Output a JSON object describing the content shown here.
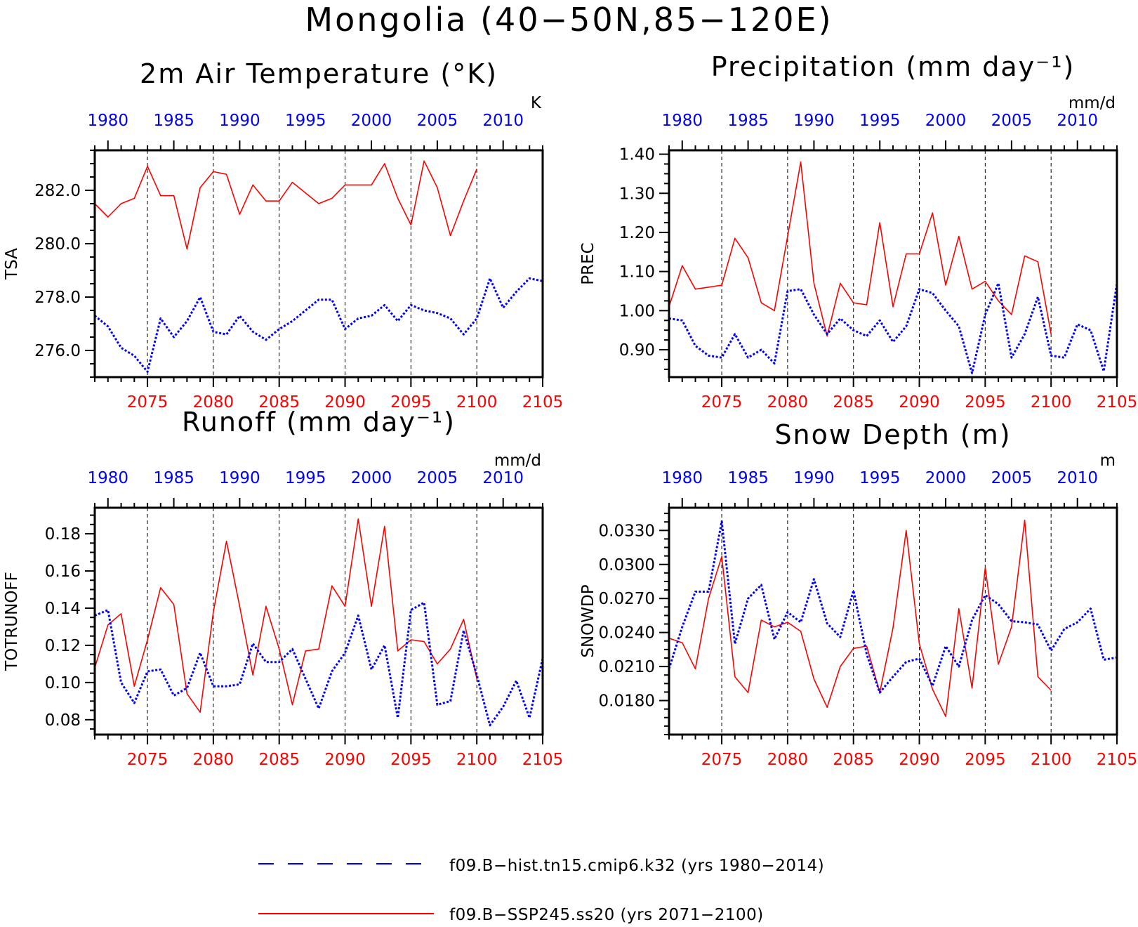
{
  "figure_title": "Mongolia (40−50N,85−120E)",
  "colors": {
    "hist": "#0000ff",
    "ssp": "#ff0000",
    "axis": "#000000",
    "grid": "#000000"
  },
  "legend": {
    "hist_label": "f09.B−hist.tn15.cmip6.k32 (yrs 1980−2014)",
    "ssp_label": "f09.B−SSP245.ss20 (yrs 2071−2100)"
  },
  "chart_data": [
    {
      "type": "line",
      "title": "2m Air Temperature (°K)",
      "ylabel": "TSA",
      "unit": "K",
      "ylim": [
        275.0,
        283.5
      ],
      "yticks": [
        276.0,
        278.0,
        280.0,
        282.0
      ],
      "ytick_labels": [
        "276.0",
        "278.0",
        "280.0",
        "282.0"
      ],
      "top_axis": {
        "range": [
          1979,
          2013
        ],
        "tick_labels": [
          "1980",
          "1985",
          "1990",
          "1995",
          "2000",
          "2005",
          "2010"
        ]
      },
      "bottom_axis": {
        "range": [
          2071,
          2105
        ],
        "tick_labels": [
          "2075",
          "2080",
          "2085",
          "2090",
          "2095",
          "2100",
          "2105"
        ]
      },
      "grid_x": [
        2075,
        2080,
        2085,
        2090,
        2095,
        2100
      ],
      "series": [
        {
          "name": "f09.B−hist.tn15.cmip6.k32",
          "style": "dotted",
          "x": [
            1979,
            1980,
            1981,
            1982,
            1983,
            1984,
            1985,
            1986,
            1987,
            1988,
            1989,
            1990,
            1991,
            1992,
            1993,
            1994,
            1995,
            1996,
            1997,
            1998,
            1999,
            2000,
            2001,
            2002,
            2003,
            2004,
            2005,
            2006,
            2007,
            2008,
            2009,
            2010,
            2011,
            2012,
            2013
          ],
          "values": [
            277.3,
            276.9,
            276.1,
            275.8,
            275.2,
            277.2,
            276.5,
            277.1,
            278.0,
            276.7,
            276.6,
            277.3,
            276.7,
            276.4,
            276.8,
            277.1,
            277.5,
            277.9,
            277.9,
            276.8,
            277.2,
            277.3,
            277.7,
            277.1,
            277.7,
            277.5,
            277.4,
            277.2,
            276.6,
            277.2,
            278.7,
            277.6,
            278.2,
            278.7,
            278.6
          ]
        },
        {
          "name": "f09.B−SSP245.ss20",
          "style": "solid",
          "x": [
            2071,
            2072,
            2073,
            2074,
            2075,
            2076,
            2077,
            2078,
            2079,
            2080,
            2081,
            2082,
            2083,
            2084,
            2085,
            2086,
            2087,
            2088,
            2089,
            2090,
            2091,
            2092,
            2093,
            2094,
            2095,
            2096,
            2097,
            2098,
            2099,
            2100
          ],
          "values": [
            281.5,
            281.0,
            281.5,
            281.7,
            282.9,
            281.8,
            281.8,
            279.8,
            282.1,
            282.7,
            282.6,
            281.1,
            282.2,
            281.6,
            281.6,
            282.3,
            281.9,
            281.5,
            281.7,
            282.2,
            282.2,
            282.2,
            283.0,
            281.7,
            280.7,
            283.1,
            282.1,
            280.3,
            281.6,
            282.8
          ]
        }
      ]
    },
    {
      "type": "line",
      "title": "Precipitation (mm day⁻¹)",
      "ylabel": "PREC",
      "unit": "mm/d",
      "ylim": [
        0.83,
        1.41
      ],
      "yticks": [
        0.9,
        1.0,
        1.1,
        1.2,
        1.3,
        1.4
      ],
      "ytick_labels": [
        "0.90",
        "1.00",
        "1.10",
        "1.20",
        "1.30",
        "1.40"
      ],
      "top_axis": {
        "range": [
          1979,
          2013
        ],
        "tick_labels": [
          "1980",
          "1985",
          "1990",
          "1995",
          "2000",
          "2005",
          "2010"
        ]
      },
      "bottom_axis": {
        "range": [
          2071,
          2105
        ],
        "tick_labels": [
          "2075",
          "2080",
          "2085",
          "2090",
          "2095",
          "2100",
          "2105"
        ]
      },
      "grid_x": [
        2075,
        2080,
        2085,
        2090,
        2095,
        2100
      ],
      "series": [
        {
          "name": "f09.B−hist.tn15.cmip6.k32",
          "style": "dotted",
          "x": [
            1979,
            1980,
            1981,
            1982,
            1983,
            1984,
            1985,
            1986,
            1987,
            1988,
            1989,
            1990,
            1991,
            1992,
            1993,
            1994,
            1995,
            1996,
            1997,
            1998,
            1999,
            2000,
            2001,
            2002,
            2003,
            2004,
            2005,
            2006,
            2007,
            2008,
            2009,
            2010,
            2011,
            2012,
            2013
          ],
          "values": [
            0.98,
            0.975,
            0.91,
            0.885,
            0.88,
            0.94,
            0.88,
            0.9,
            0.865,
            1.05,
            1.055,
            0.99,
            0.94,
            0.98,
            0.95,
            0.935,
            0.975,
            0.92,
            0.96,
            1.055,
            1.045,
            1.0,
            0.96,
            0.84,
            0.99,
            1.07,
            0.88,
            0.94,
            1.035,
            0.885,
            0.88,
            0.965,
            0.95,
            0.845,
            1.07
          ]
        },
        {
          "name": "f09.B−SSP245.ss20",
          "style": "solid",
          "x": [
            2071,
            2072,
            2073,
            2074,
            2075,
            2076,
            2077,
            2078,
            2079,
            2080,
            2081,
            2082,
            2083,
            2084,
            2085,
            2086,
            2087,
            2088,
            2089,
            2090,
            2091,
            2092,
            2093,
            2094,
            2095,
            2096,
            2097,
            2098,
            2099,
            2100
          ],
          "values": [
            1.01,
            1.115,
            1.055,
            1.06,
            1.065,
            1.185,
            1.135,
            1.02,
            1.0,
            1.19,
            1.38,
            1.07,
            0.935,
            1.07,
            1.02,
            1.015,
            1.225,
            1.01,
            1.145,
            1.145,
            1.25,
            1.065,
            1.19,
            1.055,
            1.075,
            1.025,
            0.99,
            1.14,
            1.125,
            0.94
          ]
        }
      ]
    },
    {
      "type": "line",
      "title": "Runoff (mm day⁻¹)",
      "ylabel": "TOTRUNOFF",
      "unit": "mm/d",
      "ylim": [
        0.072,
        0.194
      ],
      "yticks": [
        0.08,
        0.1,
        0.12,
        0.14,
        0.16,
        0.18
      ],
      "ytick_labels": [
        "0.08",
        "0.10",
        "0.12",
        "0.14",
        "0.16",
        "0.18"
      ],
      "top_axis": {
        "range": [
          1979,
          2013
        ],
        "tick_labels": [
          "1980",
          "1985",
          "1990",
          "1995",
          "2000",
          "2005",
          "2010"
        ]
      },
      "bottom_axis": {
        "range": [
          2071,
          2105
        ],
        "tick_labels": [
          "2075",
          "2080",
          "2085",
          "2090",
          "2095",
          "2100",
          "2105"
        ]
      },
      "grid_x": [
        2075,
        2080,
        2085,
        2090,
        2095,
        2100
      ],
      "series": [
        {
          "name": "f09.B−hist.tn15.cmip6.k32",
          "style": "dotted",
          "x": [
            1979,
            1980,
            1981,
            1982,
            1983,
            1984,
            1985,
            1986,
            1987,
            1988,
            1989,
            1990,
            1991,
            1992,
            1993,
            1994,
            1995,
            1996,
            1997,
            1998,
            1999,
            2000,
            2001,
            2002,
            2003,
            2004,
            2005,
            2006,
            2007,
            2008,
            2009,
            2010,
            2011,
            2012,
            2013
          ],
          "values": [
            0.136,
            0.139,
            0.1,
            0.089,
            0.106,
            0.107,
            0.093,
            0.097,
            0.116,
            0.098,
            0.098,
            0.099,
            0.121,
            0.111,
            0.111,
            0.118,
            0.102,
            0.086,
            0.106,
            0.116,
            0.136,
            0.107,
            0.12,
            0.081,
            0.139,
            0.143,
            0.088,
            0.09,
            0.128,
            0.104,
            0.077,
            0.087,
            0.101,
            0.081,
            0.113
          ]
        },
        {
          "name": "f09.B−SSP245.ss20",
          "style": "solid",
          "x": [
            2071,
            2072,
            2073,
            2074,
            2075,
            2076,
            2077,
            2078,
            2079,
            2080,
            2081,
            2082,
            2083,
            2084,
            2085,
            2086,
            2087,
            2088,
            2089,
            2090,
            2091,
            2092,
            2093,
            2094,
            2095,
            2096,
            2097,
            2098,
            2099,
            2100
          ],
          "values": [
            0.108,
            0.131,
            0.137,
            0.098,
            0.123,
            0.151,
            0.142,
            0.094,
            0.084,
            0.138,
            0.176,
            0.141,
            0.104,
            0.141,
            0.118,
            0.088,
            0.117,
            0.118,
            0.152,
            0.141,
            0.188,
            0.141,
            0.184,
            0.117,
            0.123,
            0.122,
            0.11,
            0.118,
            0.134,
            0.102
          ]
        }
      ]
    },
    {
      "type": "line",
      "title": "Snow Depth (m)",
      "ylabel": "SNOWDP",
      "unit": "m",
      "ylim": [
        0.015,
        0.035
      ],
      "yticks": [
        0.018,
        0.021,
        0.024,
        0.027,
        0.03,
        0.033
      ],
      "ytick_labels": [
        "0.0180",
        "0.0210",
        "0.0240",
        "0.0270",
        "0.0300",
        "0.0330"
      ],
      "top_axis": {
        "range": [
          1979,
          2013
        ],
        "tick_labels": [
          "1980",
          "1985",
          "1990",
          "1995",
          "2000",
          "2005",
          "2010"
        ]
      },
      "bottom_axis": {
        "range": [
          2071,
          2105
        ],
        "tick_labels": [
          "2075",
          "2080",
          "2085",
          "2090",
          "2095",
          "2100",
          "2105"
        ]
      },
      "grid_x": [
        2075,
        2080,
        2085,
        2090,
        2095,
        2100
      ],
      "series": [
        {
          "name": "f09.B−hist.tn15.cmip6.k32",
          "style": "dotted",
          "x": [
            1979,
            1980,
            1981,
            1982,
            1983,
            1984,
            1985,
            1986,
            1987,
            1988,
            1989,
            1990,
            1991,
            1992,
            1993,
            1994,
            1995,
            1996,
            1997,
            1998,
            1999,
            2000,
            2001,
            2002,
            2003,
            2004,
            2005,
            2006,
            2007,
            2008,
            2009,
            2010,
            2011,
            2012,
            2013
          ],
          "values": [
            0.0208,
            0.0245,
            0.0276,
            0.0276,
            0.0338,
            0.023,
            0.027,
            0.0282,
            0.0234,
            0.0258,
            0.0249,
            0.0287,
            0.0248,
            0.0236,
            0.0277,
            0.0221,
            0.0187,
            0.0201,
            0.0214,
            0.0217,
            0.0193,
            0.0228,
            0.021,
            0.0251,
            0.0273,
            0.0265,
            0.025,
            0.0249,
            0.0247,
            0.0224,
            0.0243,
            0.0249,
            0.0261,
            0.0216,
            0.0218
          ]
        },
        {
          "name": "f09.B−SSP245.ss20",
          "style": "solid",
          "x": [
            2071,
            2072,
            2073,
            2074,
            2075,
            2076,
            2077,
            2078,
            2079,
            2080,
            2081,
            2082,
            2083,
            2084,
            2085,
            2086,
            2087,
            2088,
            2089,
            2090,
            2091,
            2092,
            2093,
            2094,
            2095,
            2096,
            2097,
            2098,
            2099,
            2100
          ],
          "values": [
            0.0235,
            0.0231,
            0.0208,
            0.027,
            0.0307,
            0.0201,
            0.0187,
            0.0251,
            0.0245,
            0.0249,
            0.0241,
            0.0199,
            0.0174,
            0.021,
            0.0226,
            0.0228,
            0.0187,
            0.0244,
            0.033,
            0.023,
            0.019,
            0.0166,
            0.0261,
            0.0191,
            0.0297,
            0.0212,
            0.0245,
            0.0339,
            0.0201,
            0.0189
          ]
        }
      ]
    }
  ]
}
